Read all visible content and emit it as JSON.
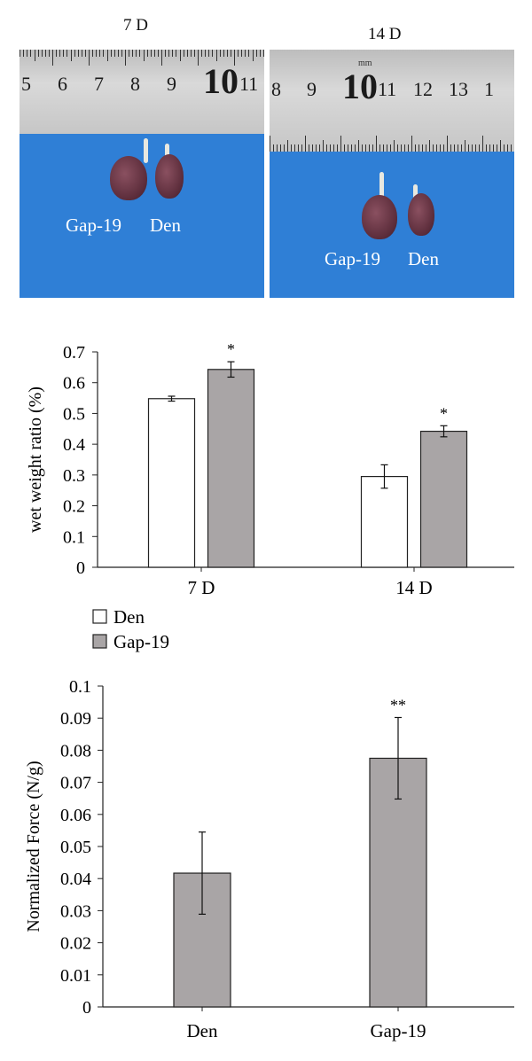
{
  "photos": [
    {
      "label": "7 D",
      "ruler_numbers": [
        "5",
        "6",
        "7",
        "8",
        "9",
        "10",
        "11"
      ],
      "specimens": [
        "Gap-19",
        "Den"
      ]
    },
    {
      "label": "14 D",
      "ruler_unit": "mm",
      "ruler_numbers": [
        "8",
        "9",
        "10",
        "11",
        "12",
        "13",
        "1"
      ],
      "specimens": [
        "Gap-19",
        "Den"
      ]
    }
  ],
  "chart_data": [
    {
      "type": "bar",
      "title": "",
      "ylabel": "wet weight ratio (%)",
      "xlabel": "",
      "categories": [
        "7 D",
        "14 D"
      ],
      "ylim": [
        0,
        0.7
      ],
      "yticks": [
        "0",
        "0.1",
        "0.2",
        "0.3",
        "0.4",
        "0.5",
        "0.6",
        "0.7"
      ],
      "series": [
        {
          "name": "Den",
          "color": "#ffffff",
          "values": [
            0.548,
            0.295
          ],
          "errors": [
            0.008,
            0.038
          ]
        },
        {
          "name": "Gap-19",
          "color": "#a9a5a6",
          "values": [
            0.643,
            0.442
          ],
          "errors": [
            0.025,
            0.018
          ]
        }
      ],
      "annotations": [
        {
          "series": "Gap-19",
          "category": "7 D",
          "text": "*"
        },
        {
          "series": "Gap-19",
          "category": "14 D",
          "text": "*"
        }
      ],
      "legend": "bottom-left",
      "grid": false
    },
    {
      "type": "bar",
      "title": "",
      "ylabel": "Normalized Force (N/g)",
      "xlabel": "",
      "categories": [
        "Den",
        "Gap-19"
      ],
      "ylim": [
        0,
        0.1
      ],
      "yticks": [
        "0",
        "0.01",
        "0.02",
        "0.03",
        "0.04",
        "0.05",
        "0.06",
        "0.07",
        "0.08",
        "0.09",
        "0.1"
      ],
      "values": [
        0.0417,
        0.0775
      ],
      "errors": [
        0.0128,
        0.0127
      ],
      "color": "#a9a5a6",
      "annotations": [
        {
          "category": "Gap-19",
          "text": "**"
        }
      ],
      "grid": false
    }
  ]
}
